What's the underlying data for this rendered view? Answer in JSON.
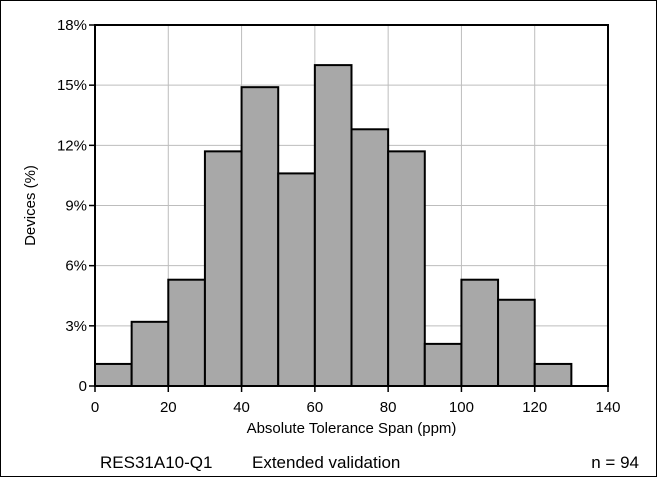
{
  "chart_data": {
    "type": "bar",
    "x_bin_edges": [
      0,
      10,
      20,
      30,
      40,
      50,
      60,
      70,
      80,
      90,
      100,
      110,
      120,
      130
    ],
    "values": [
      1.1,
      3.2,
      5.3,
      11.7,
      14.9,
      10.6,
      16.0,
      12.8,
      11.7,
      2.1,
      5.3,
      4.3,
      1.1
    ],
    "xlabel": "Absolute Tolerance Span (ppm)",
    "ylabel": "Devices (%)",
    "xlim": [
      0,
      140
    ],
    "ylim": [
      0,
      18
    ],
    "x_ticks": [
      0,
      20,
      40,
      60,
      80,
      100,
      120,
      140
    ],
    "y_ticks": [
      0,
      3,
      6,
      9,
      12,
      15,
      18
    ],
    "y_tick_labels": [
      "0",
      "3%",
      "6%",
      "9%",
      "12%",
      "15%",
      "18%"
    ],
    "grid": true,
    "bar_fill": "#a8a8a8",
    "bar_stroke": "#000000"
  },
  "footer": {
    "part_number": "RES31A10-Q1",
    "description": "Extended validation",
    "sample_size": "n = 94"
  }
}
